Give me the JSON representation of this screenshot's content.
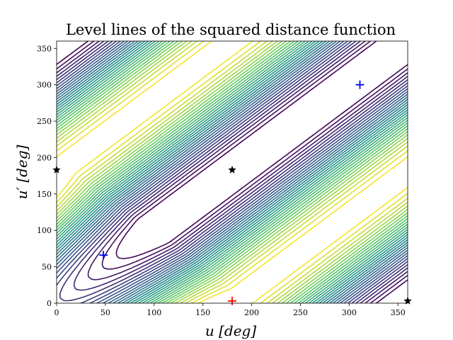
{
  "chart_data": {
    "type": "contour",
    "title": "Level lines of the squared distance function",
    "xlabel": "u [deg]",
    "ylabel": "u′ [deg]",
    "xlim": [
      0,
      360
    ],
    "ylim": [
      0,
      360
    ],
    "x_ticks": [
      0,
      50,
      100,
      150,
      200,
      250,
      300,
      350
    ],
    "y_ticks": [
      0,
      50,
      100,
      150,
      200,
      250,
      300,
      350
    ],
    "grid": false,
    "legend": "none",
    "colormap": [
      "#440154",
      "#3b528b",
      "#21918c",
      "#5ec962",
      "#fde725"
    ],
    "maxima": [
      {
        "x": 190,
        "y": 8
      },
      {
        "x": 170,
        "y": 352
      }
    ],
    "markers": [
      {
        "symbol": "plus",
        "color": "#0000ff",
        "x": 48,
        "y": 66
      },
      {
        "symbol": "plus",
        "color": "#0000ff",
        "x": 311,
        "y": 300
      },
      {
        "symbol": "plus",
        "color": "#ff0000",
        "x": 180,
        "y": 3
      },
      {
        "symbol": "star",
        "color": "#000000",
        "x": 180,
        "y": 183
      },
      {
        "symbol": "star",
        "color": "#000000",
        "x": 0,
        "y": 183
      },
      {
        "symbol": "star",
        "color": "#000000",
        "x": 360,
        "y": 3
      }
    ]
  }
}
